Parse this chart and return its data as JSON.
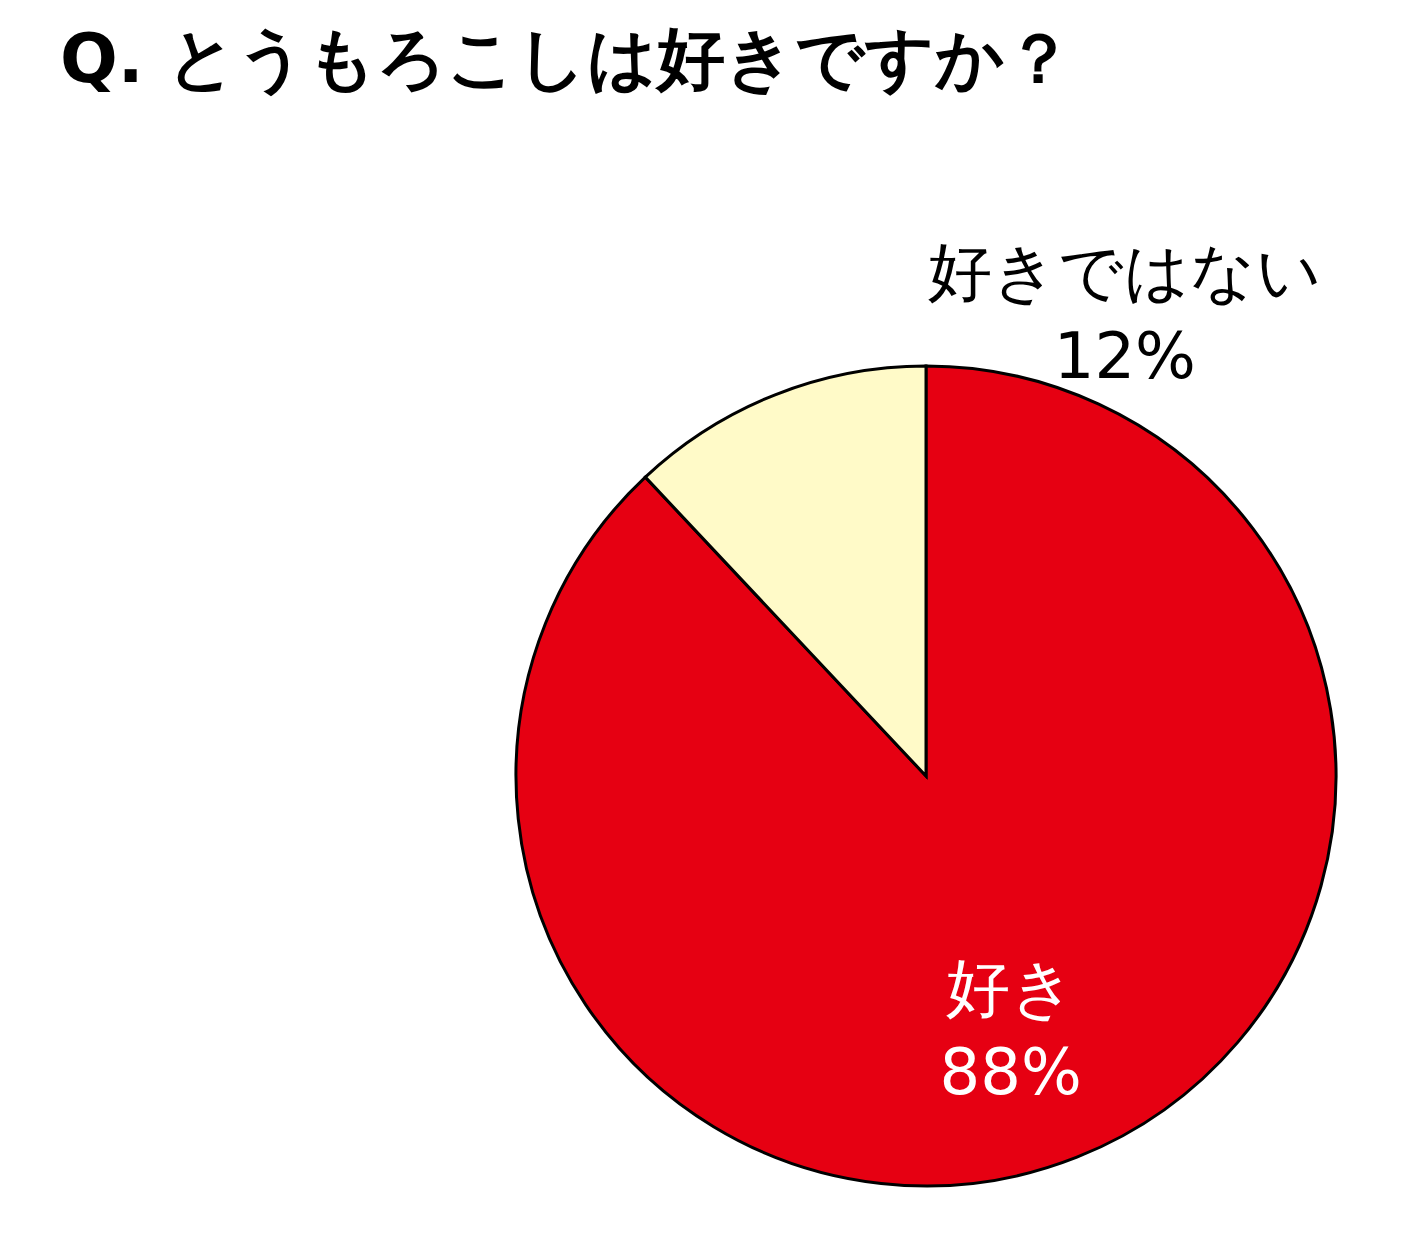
{
  "chart_data": {
    "type": "pie",
    "title": "Q. とうもろこしは好きですか？",
    "categories": [
      "好き",
      "好きではない"
    ],
    "values": [
      88,
      12
    ],
    "value_labels": [
      "88%",
      "12%"
    ],
    "colors": [
      "#e60012",
      "#fffac8"
    ],
    "legend": false
  }
}
